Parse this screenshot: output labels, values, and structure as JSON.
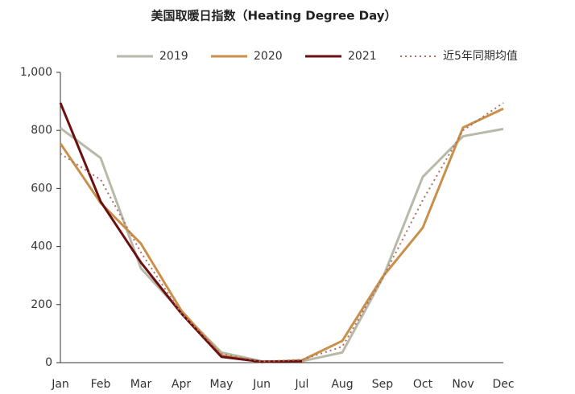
{
  "chart_data": {
    "type": "line",
    "title": "美国取暖日指数（Heating Degree Day）",
    "categories": [
      "Jan",
      "Feb",
      "Mar",
      "Apr",
      "May",
      "Jun",
      "Jul",
      "Aug",
      "Sep",
      "Oct",
      "Nov",
      "Dec"
    ],
    "series": [
      {
        "name": "2019",
        "color": "#b9b9a9",
        "style": "solid",
        "values": [
          808,
          705,
          325,
          175,
          35,
          5,
          5,
          35,
          290,
          640,
          780,
          805
        ]
      },
      {
        "name": "2020",
        "color": "#c8904a",
        "style": "solid",
        "values": [
          755,
          550,
          410,
          180,
          25,
          2,
          8,
          75,
          295,
          465,
          810,
          875
        ]
      },
      {
        "name": "2021",
        "color": "#6b0f10",
        "style": "solid",
        "values": [
          895,
          555,
          345,
          170,
          20,
          3,
          5,
          null,
          null,
          null,
          null,
          null
        ]
      },
      {
        "name": "近5年同期均值",
        "color": "#b07060",
        "style": "dotted",
        "values": [
          720,
          630,
          380,
          170,
          30,
          4,
          10,
          55,
          290,
          560,
          800,
          895
        ]
      }
    ],
    "ylim": [
      0,
      1000
    ],
    "yticks": [
      0,
      200,
      400,
      600,
      800,
      {
        "value": 1000,
        "label": "1,000"
      }
    ],
    "grid": false,
    "legend": "top"
  }
}
